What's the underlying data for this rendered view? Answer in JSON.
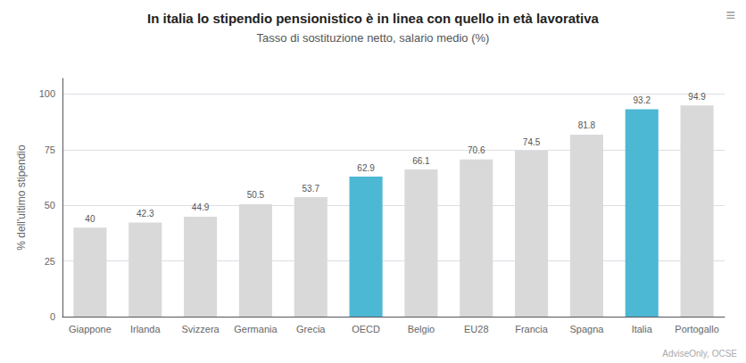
{
  "chart_data": {
    "type": "bar",
    "title": "In italia lo stipendio pensionistico è in linea con quello in età lavorativa",
    "subtitle": "Tasso di sostituzione netto, salario medio (%)",
    "categories": [
      "Giappone",
      "Irlanda",
      "Svizzera",
      "Germania",
      "Grecia",
      "OECD",
      "Belgio",
      "EU28",
      "Francia",
      "Spagna",
      "Italia",
      "Portogallo"
    ],
    "values": [
      40,
      42.3,
      44.9,
      50.5,
      53.7,
      62.9,
      66.1,
      70.6,
      74.5,
      81.8,
      93.2,
      94.9
    ],
    "colors": [
      "#d9d9d9",
      "#d9d9d9",
      "#d9d9d9",
      "#d9d9d9",
      "#d9d9d9",
      "#4db8d4",
      "#d9d9d9",
      "#d9d9d9",
      "#d9d9d9",
      "#d9d9d9",
      "#4db8d4",
      "#d9d9d9"
    ],
    "ylabel": "% dell'ultimo stipendio",
    "ylim": [
      0,
      107
    ],
    "yticks": [
      0,
      25,
      50,
      75,
      100
    ],
    "grid": true,
    "data_labels": true,
    "source": "AdviseOnly, OCSE",
    "annotations": [
      "≡"
    ]
  }
}
